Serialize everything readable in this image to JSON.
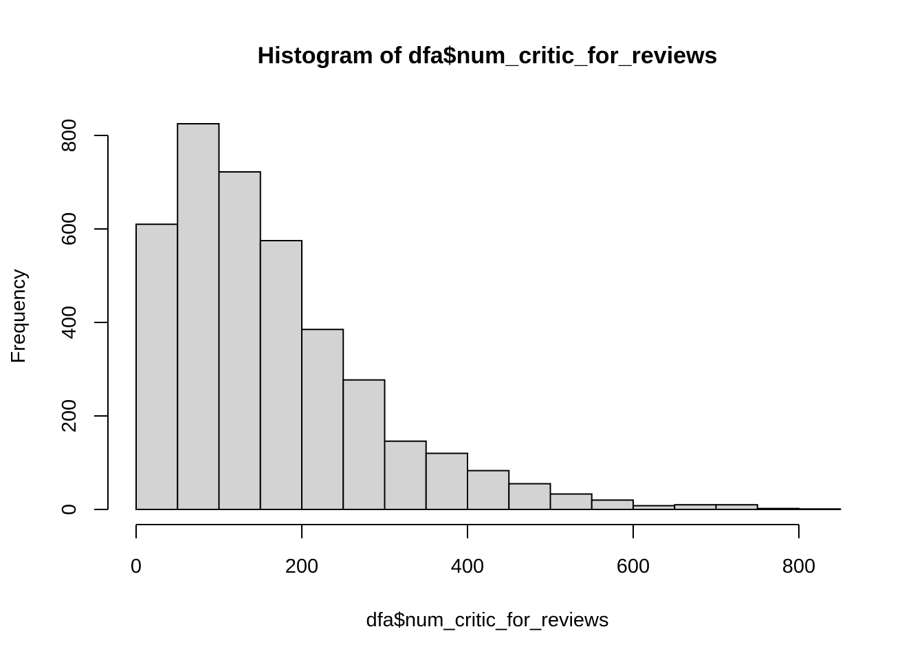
{
  "chart_data": {
    "type": "bar",
    "title": "Histogram of dfa$num_critic_for_reviews",
    "xlabel": "dfa$num_critic_for_reviews",
    "ylabel": "Frequency",
    "bin_edges": [
      0,
      50,
      100,
      150,
      200,
      250,
      300,
      350,
      400,
      450,
      500,
      550,
      600,
      650,
      700,
      750,
      800,
      850
    ],
    "values": [
      610,
      825,
      722,
      575,
      385,
      277,
      146,
      120,
      83,
      55,
      33,
      20,
      8,
      10,
      10,
      2,
      1
    ],
    "x_ticks": [
      0,
      200,
      400,
      600,
      800
    ],
    "y_ticks": [
      0,
      200,
      400,
      600,
      800
    ],
    "xlim": [
      0,
      850
    ],
    "ylim": [
      0,
      825
    ],
    "bar_fill": "#d3d3d3",
    "bar_stroke": "#000000",
    "grid": false
  }
}
